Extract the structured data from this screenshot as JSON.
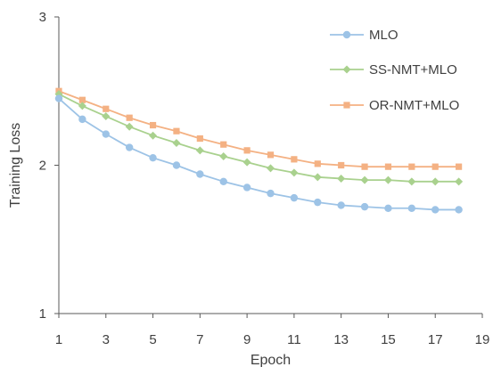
{
  "chart_data": {
    "type": "line",
    "title": "",
    "xlabel": "Epoch",
    "ylabel": "Training Loss",
    "xlim": [
      1,
      19
    ],
    "ylim": [
      1,
      3
    ],
    "x_ticks": [
      1,
      3,
      5,
      7,
      9,
      11,
      13,
      15,
      17,
      19
    ],
    "y_ticks": [
      1,
      2,
      3
    ],
    "grid": false,
    "legend_position": "top-right",
    "x": [
      1,
      2,
      3,
      4,
      5,
      6,
      7,
      8,
      9,
      10,
      11,
      12,
      13,
      14,
      15,
      16,
      17,
      18
    ],
    "series": [
      {
        "name": "MLO",
        "color": "#9DC3E6",
        "marker": "circle",
        "values": [
          2.45,
          2.31,
          2.21,
          2.12,
          2.05,
          2.0,
          1.94,
          1.89,
          1.85,
          1.81,
          1.78,
          1.75,
          1.73,
          1.72,
          1.71,
          1.71,
          1.7,
          1.7
        ]
      },
      {
        "name": "SS-NMT+MLO",
        "color": "#A9D18E",
        "marker": "diamond",
        "values": [
          2.48,
          2.4,
          2.33,
          2.26,
          2.2,
          2.15,
          2.1,
          2.06,
          2.02,
          1.98,
          1.95,
          1.92,
          1.91,
          1.9,
          1.9,
          1.89,
          1.89,
          1.89
        ]
      },
      {
        "name": "OR-NMT+MLO",
        "color": "#F4B183",
        "marker": "square",
        "values": [
          2.5,
          2.44,
          2.38,
          2.32,
          2.27,
          2.23,
          2.18,
          2.14,
          2.1,
          2.07,
          2.04,
          2.01,
          2.0,
          1.99,
          1.99,
          1.99,
          1.99,
          1.99
        ]
      }
    ]
  }
}
